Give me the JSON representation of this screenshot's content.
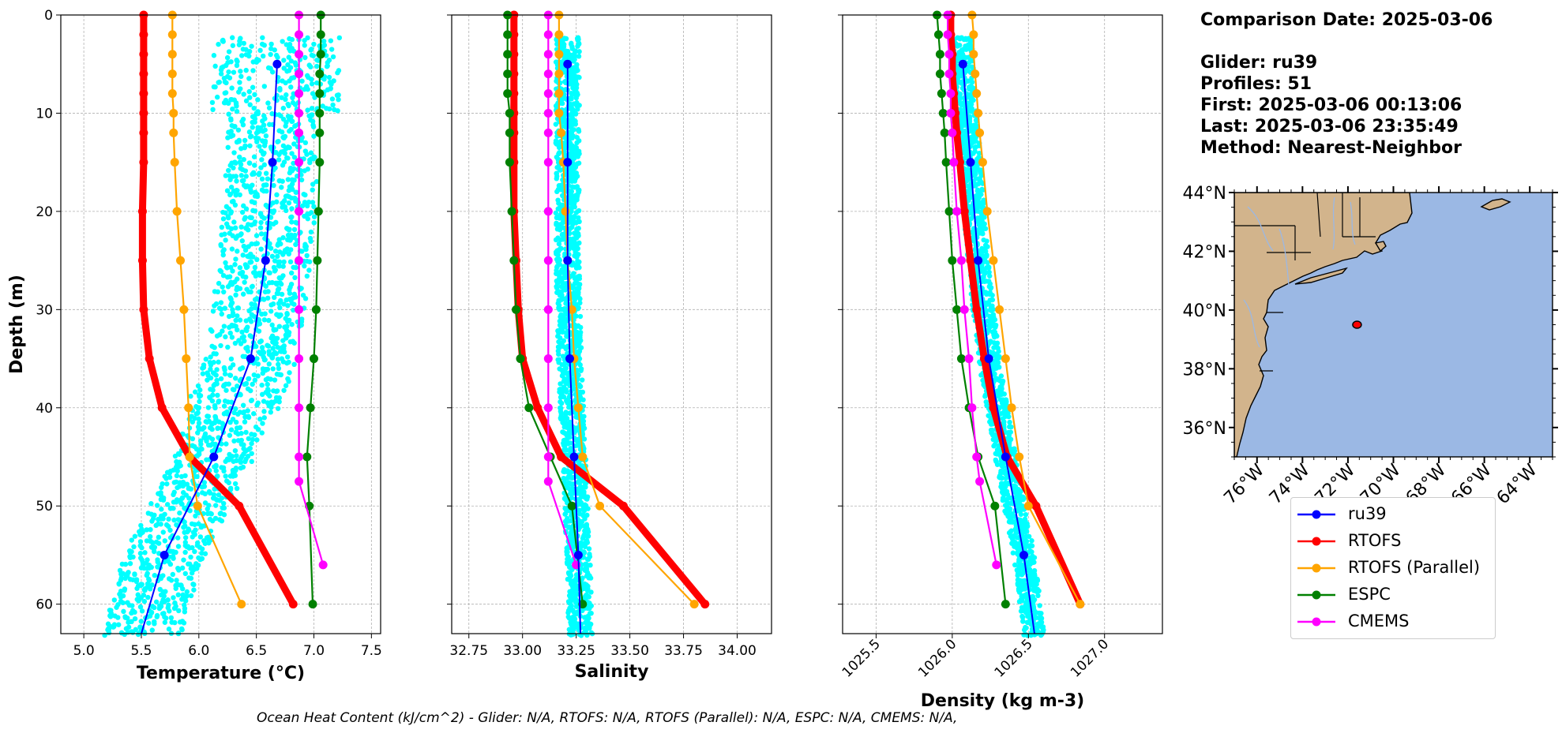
{
  "info": {
    "comparison": "Comparison Date: 2025-03-06",
    "glider": "Glider: ru39",
    "profiles": "Profiles: 51",
    "first": "First: 2025-03-06 00:13:06",
    "last": "Last: 2025-03-06 23:35:49",
    "method": "Method: Nearest-Neighbor"
  },
  "footer": "Ocean Heat Content (kJ/cm^2) - Glider: N/A,  RTOFS: N/A,  RTOFS (Parallel): N/A,  ESPC: N/A,  CMEMS: N/A,",
  "legend": [
    {
      "label": "ru39",
      "color": "#0000ff"
    },
    {
      "label": "RTOFS",
      "color": "#ff0000"
    },
    {
      "label": "RTOFS (Parallel)",
      "color": "#ffa500"
    },
    {
      "label": "ESPC",
      "color": "#008000"
    },
    {
      "label": "CMEMS",
      "color": "#ff00ff"
    }
  ],
  "colors": {
    "ru39": "#0000ff",
    "rtofs": "#ff0000",
    "rtofs_parallel": "#ffa500",
    "espc": "#008000",
    "cmems": "#ff00ff",
    "glider_points": "#00ffff",
    "land": "#d2b48c",
    "ocean": "#9bb8e4"
  },
  "chart_data": [
    {
      "type": "line",
      "xlabel": "Temperature (°C)",
      "ylabel": "Depth (m)",
      "xlim": [
        4.8,
        7.58
      ],
      "ylim": [
        63,
        0
      ],
      "xticks": [
        5.0,
        5.5,
        6.0,
        6.5,
        7.0,
        7.5
      ],
      "xtick_labels": [
        "5.0",
        "5.5",
        "6.0",
        "6.5",
        "7.0",
        "7.5"
      ],
      "yticks": [
        0,
        10,
        20,
        30,
        40,
        50,
        60
      ],
      "grid": true,
      "series": [
        {
          "name": "ru39",
          "depth": [
            5,
            15,
            25,
            35,
            45,
            55,
            63
          ],
          "values": [
            6.68,
            6.64,
            6.58,
            6.45,
            6.13,
            5.7,
            5.5
          ]
        },
        {
          "name": "RTOFS",
          "depth": [
            0,
            2,
            4,
            6,
            8,
            10,
            12,
            15,
            20,
            25,
            30,
            35,
            40,
            45,
            50,
            60
          ],
          "values": [
            5.52,
            5.52,
            5.52,
            5.52,
            5.52,
            5.52,
            5.52,
            5.52,
            5.51,
            5.51,
            5.52,
            5.57,
            5.68,
            5.92,
            6.35,
            6.82
          ]
        },
        {
          "name": "RTOFS (Parallel)",
          "depth": [
            0,
            2,
            4,
            6,
            8,
            10,
            12,
            15,
            20,
            25,
            30,
            35,
            40,
            45,
            50,
            60
          ],
          "values": [
            5.77,
            5.77,
            5.77,
            5.77,
            5.77,
            5.78,
            5.78,
            5.79,
            5.81,
            5.84,
            5.87,
            5.89,
            5.91,
            5.92,
            5.99,
            6.37
          ]
        },
        {
          "name": "ESPC",
          "depth": [
            0,
            2,
            4,
            6,
            8,
            10,
            12,
            15,
            20,
            25,
            30,
            35,
            40,
            45,
            50,
            60
          ],
          "values": [
            7.06,
            7.06,
            7.06,
            7.05,
            7.05,
            7.05,
            7.05,
            7.05,
            7.04,
            7.03,
            7.02,
            7.0,
            6.97,
            6.94,
            6.96,
            6.99
          ]
        },
        {
          "name": "CMEMS",
          "depth": [
            0,
            2,
            4,
            6,
            8,
            10,
            12,
            15,
            20,
            25,
            30,
            35,
            40,
            45,
            47.5,
            56
          ],
          "values": [
            6.87,
            6.87,
            6.87,
            6.87,
            6.87,
            6.87,
            6.87,
            6.87,
            6.87,
            6.87,
            6.87,
            6.87,
            6.87,
            6.87,
            6.87,
            7.08
          ]
        }
      ]
    },
    {
      "type": "line",
      "xlabel": "Salinity",
      "xlim": [
        32.67,
        34.16
      ],
      "ylim": [
        63,
        0
      ],
      "xticks": [
        32.75,
        33.0,
        33.25,
        33.5,
        33.75,
        34.0
      ],
      "xtick_labels": [
        "32.75",
        "33.00",
        "33.25",
        "33.50",
        "33.75",
        "34.00"
      ],
      "yticks": [
        0,
        10,
        20,
        30,
        40,
        50,
        60
      ],
      "grid": true,
      "series": [
        {
          "name": "ru39",
          "depth": [
            5,
            15,
            25,
            35,
            45,
            55,
            63
          ],
          "values": [
            33.21,
            33.21,
            33.21,
            33.22,
            33.24,
            33.26,
            33.27
          ]
        },
        {
          "name": "RTOFS",
          "depth": [
            0,
            2,
            4,
            6,
            8,
            10,
            12,
            15,
            20,
            25,
            30,
            35,
            40,
            45,
            50,
            60
          ],
          "values": [
            32.96,
            32.96,
            32.96,
            32.96,
            32.96,
            32.96,
            32.96,
            32.96,
            32.96,
            32.97,
            32.98,
            33.0,
            33.07,
            33.18,
            33.47,
            33.85
          ]
        },
        {
          "name": "RTOFS (Parallel)",
          "depth": [
            0,
            2,
            4,
            6,
            8,
            10,
            12,
            15,
            20,
            25,
            30,
            35,
            40,
            45,
            50,
            60
          ],
          "values": [
            33.17,
            33.17,
            33.17,
            33.17,
            33.17,
            33.17,
            33.18,
            33.19,
            33.2,
            33.21,
            33.23,
            33.24,
            33.26,
            33.28,
            33.36,
            33.8
          ]
        },
        {
          "name": "ESPC",
          "depth": [
            0,
            2,
            4,
            6,
            8,
            10,
            12,
            15,
            20,
            25,
            30,
            35,
            40,
            45,
            50,
            60
          ],
          "values": [
            32.93,
            32.93,
            32.93,
            32.93,
            32.93,
            32.94,
            32.94,
            32.94,
            32.95,
            32.96,
            32.97,
            32.99,
            33.03,
            33.13,
            33.23,
            33.28
          ]
        },
        {
          "name": "CMEMS",
          "depth": [
            0,
            2,
            4,
            6,
            8,
            10,
            12,
            15,
            20,
            25,
            30,
            35,
            40,
            45,
            47.5,
            56
          ],
          "values": [
            33.12,
            33.12,
            33.12,
            33.12,
            33.12,
            33.12,
            33.12,
            33.12,
            33.12,
            33.12,
            33.12,
            33.12,
            33.12,
            33.12,
            33.12,
            33.25
          ]
        }
      ]
    },
    {
      "type": "line",
      "xlabel": "Density (kg m-3)",
      "xlim": [
        1025.28,
        1027.38
      ],
      "ylim": [
        63,
        0
      ],
      "xticks": [
        1025.5,
        1026.0,
        1026.5,
        1027.0
      ],
      "xtick_labels": [
        "1025.5",
        "1026.0",
        "1026.5",
        "1027.0"
      ],
      "yticks": [
        0,
        10,
        20,
        30,
        40,
        50,
        60
      ],
      "grid": true,
      "series": [
        {
          "name": "ru39",
          "depth": [
            5,
            15,
            25,
            35,
            45,
            55,
            63
          ],
          "values": [
            1026.07,
            1026.12,
            1026.17,
            1026.24,
            1026.35,
            1026.47,
            1026.54
          ]
        },
        {
          "name": "RTOFS",
          "depth": [
            0,
            2,
            4,
            6,
            8,
            10,
            12,
            15,
            20,
            25,
            30,
            35,
            40,
            45,
            50,
            60
          ],
          "values": [
            1025.99,
            1025.99,
            1026.0,
            1026.0,
            1026.01,
            1026.02,
            1026.03,
            1026.05,
            1026.08,
            1026.12,
            1026.16,
            1026.21,
            1026.27,
            1026.36,
            1026.55,
            1026.84
          ]
        },
        {
          "name": "RTOFS (Parallel)",
          "depth": [
            0,
            2,
            4,
            6,
            8,
            10,
            12,
            15,
            20,
            25,
            30,
            35,
            40,
            45,
            50,
            60
          ],
          "values": [
            1026.13,
            1026.14,
            1026.14,
            1026.15,
            1026.16,
            1026.17,
            1026.18,
            1026.2,
            1026.23,
            1026.27,
            1026.31,
            1026.35,
            1026.39,
            1026.44,
            1026.5,
            1026.84
          ]
        },
        {
          "name": "ESPC",
          "depth": [
            0,
            2,
            4,
            6,
            8,
            10,
            12,
            15,
            20,
            25,
            30,
            35,
            40,
            45,
            50,
            60
          ],
          "values": [
            1025.9,
            1025.91,
            1025.92,
            1025.92,
            1025.93,
            1025.94,
            1025.95,
            1025.96,
            1025.98,
            1026.0,
            1026.03,
            1026.06,
            1026.11,
            1026.17,
            1026.28,
            1026.35
          ]
        },
        {
          "name": "CMEMS",
          "depth": [
            0,
            2,
            4,
            6,
            8,
            10,
            12,
            15,
            20,
            25,
            30,
            35,
            40,
            45,
            47.5,
            56
          ],
          "values": [
            1025.97,
            1025.97,
            1025.98,
            1025.98,
            1025.99,
            1025.99,
            1026.0,
            1026.01,
            1026.03,
            1026.06,
            1026.08,
            1026.11,
            1026.13,
            1026.16,
            1026.18,
            1026.29
          ]
        }
      ]
    }
  ],
  "map": {
    "lat_labels": [
      "44°N",
      "42°N",
      "40°N",
      "38°N",
      "36°N"
    ],
    "lat_values": [
      44,
      42,
      40,
      38,
      36
    ],
    "lon_labels": [
      "76°W",
      "74°W",
      "72°W",
      "70°W",
      "68°W",
      "66°W",
      "64°W"
    ],
    "lon_values": [
      -76,
      -74,
      -72,
      -70,
      -68,
      -66,
      -64
    ],
    "lon_range": [
      -77,
      -63
    ],
    "lat_range": [
      35,
      44
    ],
    "glider_position": {
      "lon": -71.6,
      "lat": 39.5
    }
  }
}
